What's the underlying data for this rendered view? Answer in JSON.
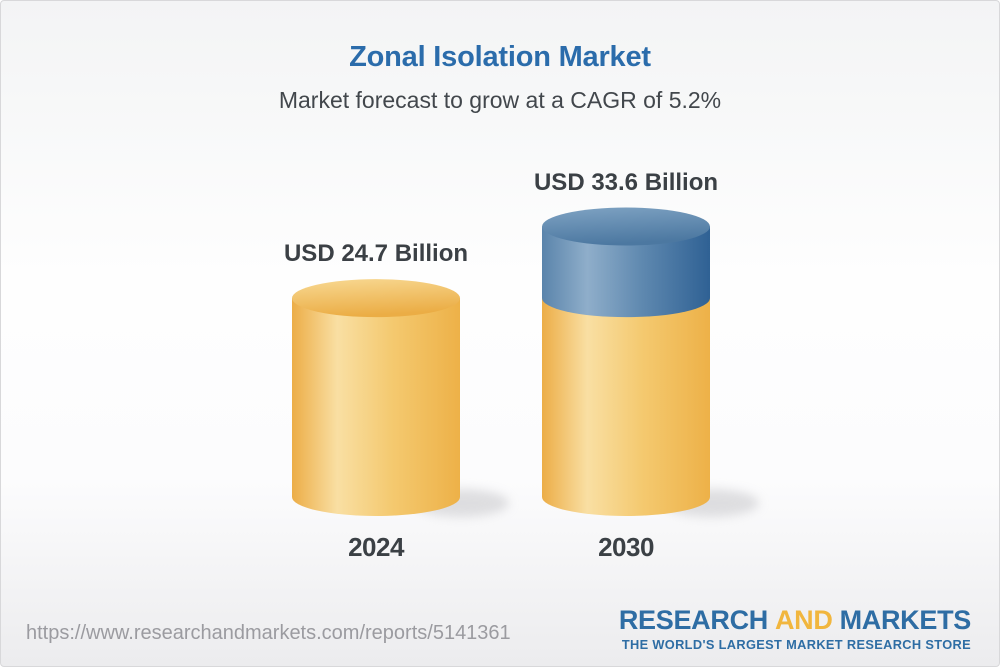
{
  "header": {
    "title": "Zonal Isolation Market",
    "subtitle": "Market forecast to grow at a CAGR of 5.2%"
  },
  "chart_data": {
    "type": "bar",
    "variant": "3d-cylinder",
    "title": "Zonal Isolation Market",
    "subtitle": "Market forecast to grow at a CAGR of 5.2%",
    "cagr_percent": 5.2,
    "unit": "USD Billion",
    "categories": [
      "2024",
      "2030"
    ],
    "values": [
      24.7,
      33.6
    ],
    "value_labels": [
      "USD 24.7 Billion",
      "USD 33.6 Billion"
    ],
    "baseline_value": 24.7,
    "legend": "none",
    "colors": {
      "base_segment": "#EFBC55",
      "growth_segment": "#557FA7",
      "label_text": "#3B4045",
      "title_blue": "#2B6CAB"
    }
  },
  "footer": {
    "url": "https://www.researchandmarkets.com/reports/5141361",
    "logo": {
      "word1": "RESEARCH",
      "word2": "AND",
      "word3": "MARKETS",
      "tagline": "THE WORLD'S LARGEST MARKET RESEARCH STORE",
      "blue": "#2E6DA4",
      "yellow": "#F1B63E"
    }
  }
}
